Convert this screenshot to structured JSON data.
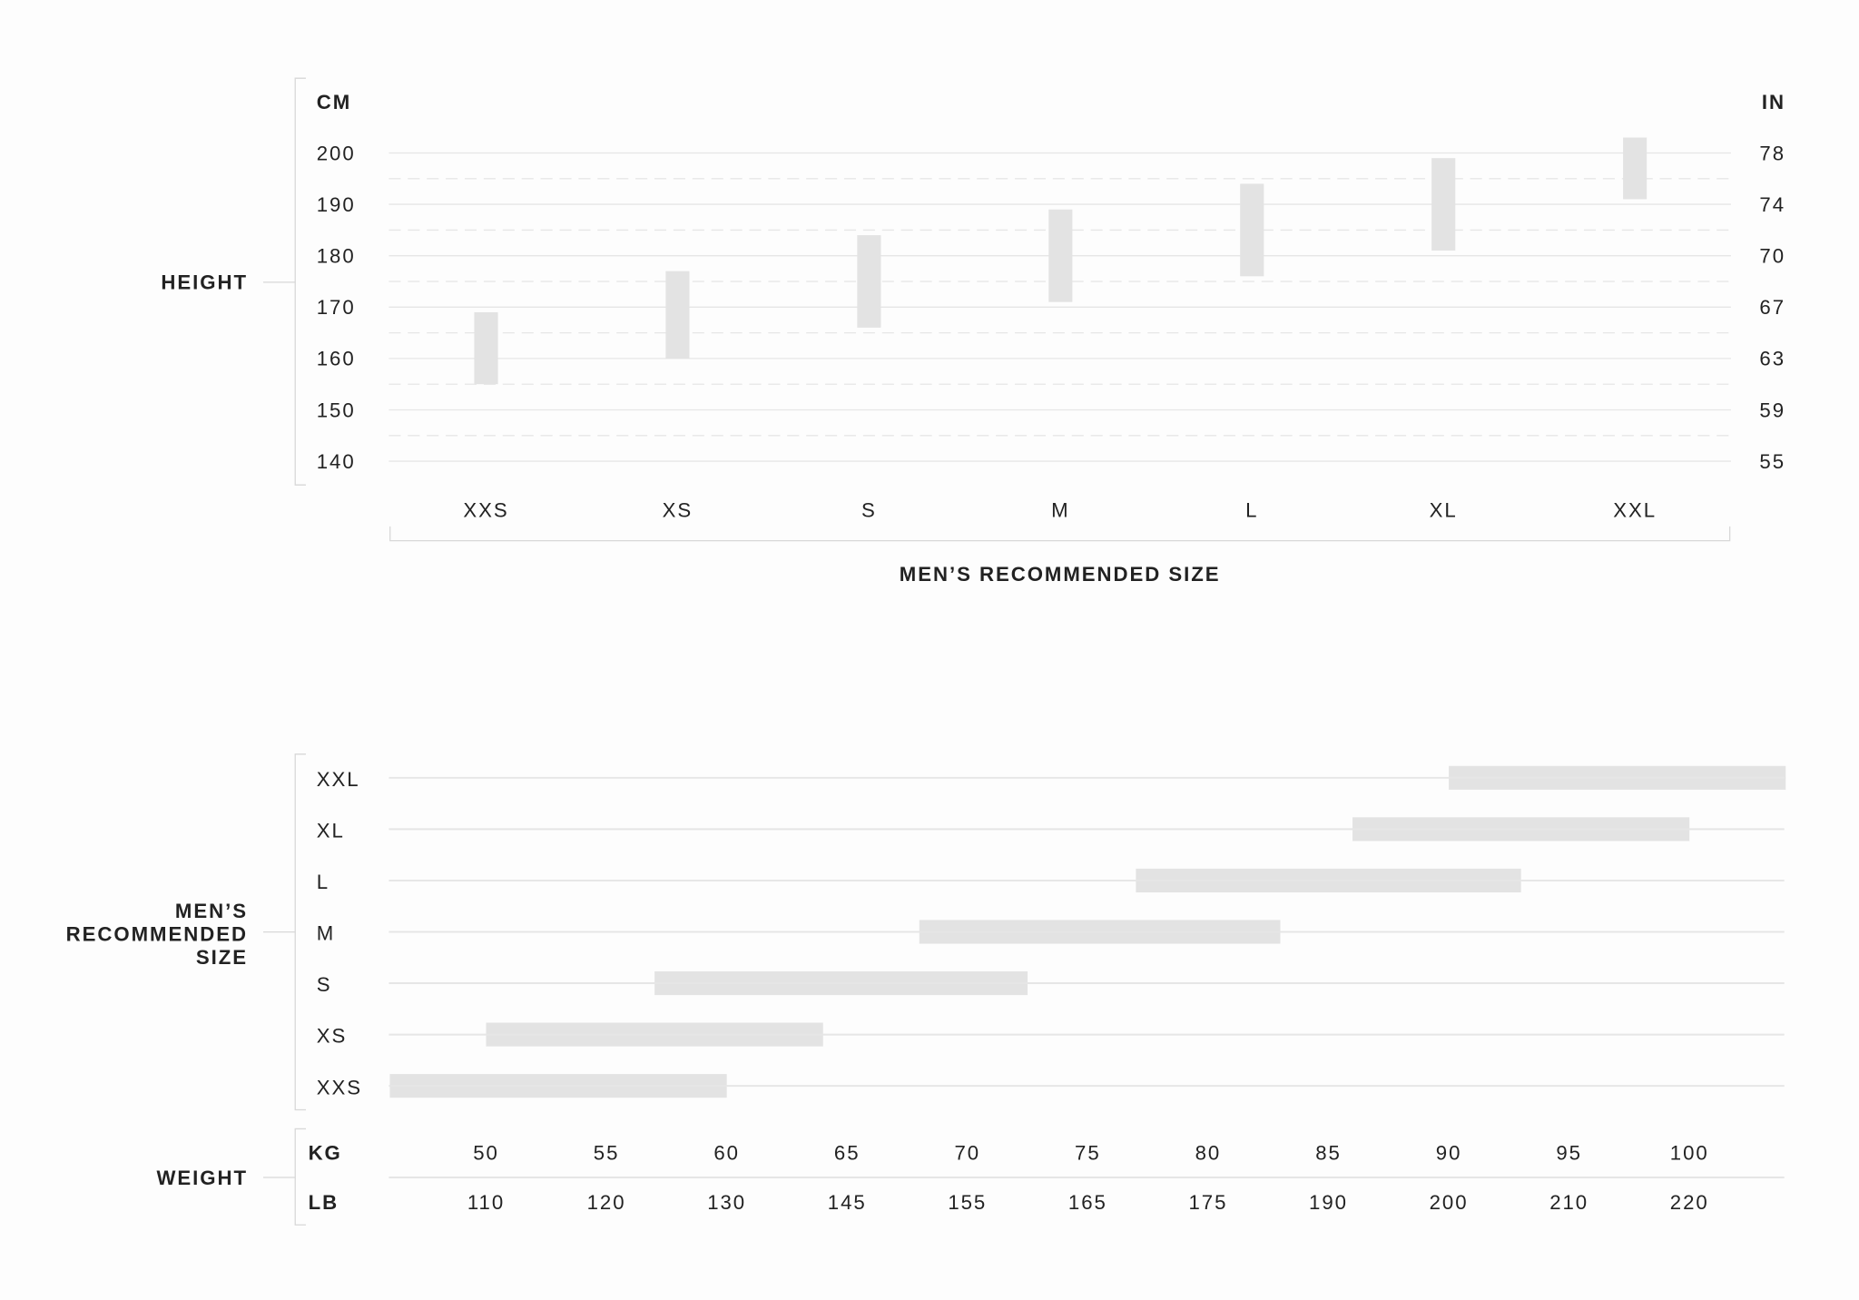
{
  "chart_data": [
    {
      "type": "range-bar",
      "orientation": "vertical",
      "ylabel": "HEIGHT",
      "left_unit": "CM",
      "right_unit": "IN",
      "xlabel": "MEN'S RECOMMENDED SIZE",
      "categories": [
        "XXS",
        "XS",
        "S",
        "M",
        "L",
        "XL",
        "XXL"
      ],
      "ranges_cm": [
        [
          155,
          169
        ],
        [
          160,
          177
        ],
        [
          166,
          184
        ],
        [
          171,
          189
        ],
        [
          176,
          194
        ],
        [
          181,
          199
        ],
        [
          191,
          203
        ]
      ],
      "ylim": [
        140,
        200
      ],
      "left_ticks": [
        "200",
        "190",
        "180",
        "170",
        "160",
        "150",
        "140"
      ],
      "right_ticks": [
        "78",
        "74",
        "70",
        "67",
        "63",
        "59",
        "55"
      ],
      "grid": true,
      "bar_color": "#e3e3e3"
    },
    {
      "type": "range-bar",
      "orientation": "horizontal",
      "ylabel": "MEN'S RECOMMENDED SIZE",
      "xlabel": "WEIGHT",
      "categories": [
        "XXL",
        "XL",
        "L",
        "M",
        "S",
        "XS",
        "XXS"
      ],
      "ranges_kg": [
        [
          90,
          104
        ],
        [
          86,
          100
        ],
        [
          77,
          93
        ],
        [
          68,
          83
        ],
        [
          57,
          72.5
        ],
        [
          50,
          64
        ],
        [
          46,
          60
        ]
      ],
      "xlim": [
        46,
        104
      ],
      "kg_unit": "KG",
      "lb_unit": "LB",
      "kg_ticks": [
        "50",
        "55",
        "60",
        "65",
        "70",
        "75",
        "80",
        "85",
        "90",
        "95",
        "100"
      ],
      "lb_ticks": [
        "110",
        "120",
        "130",
        "145",
        "155",
        "165",
        "175",
        "190",
        "200",
        "210",
        "220"
      ],
      "grid": true,
      "bar_color": "#e3e3e3"
    }
  ]
}
